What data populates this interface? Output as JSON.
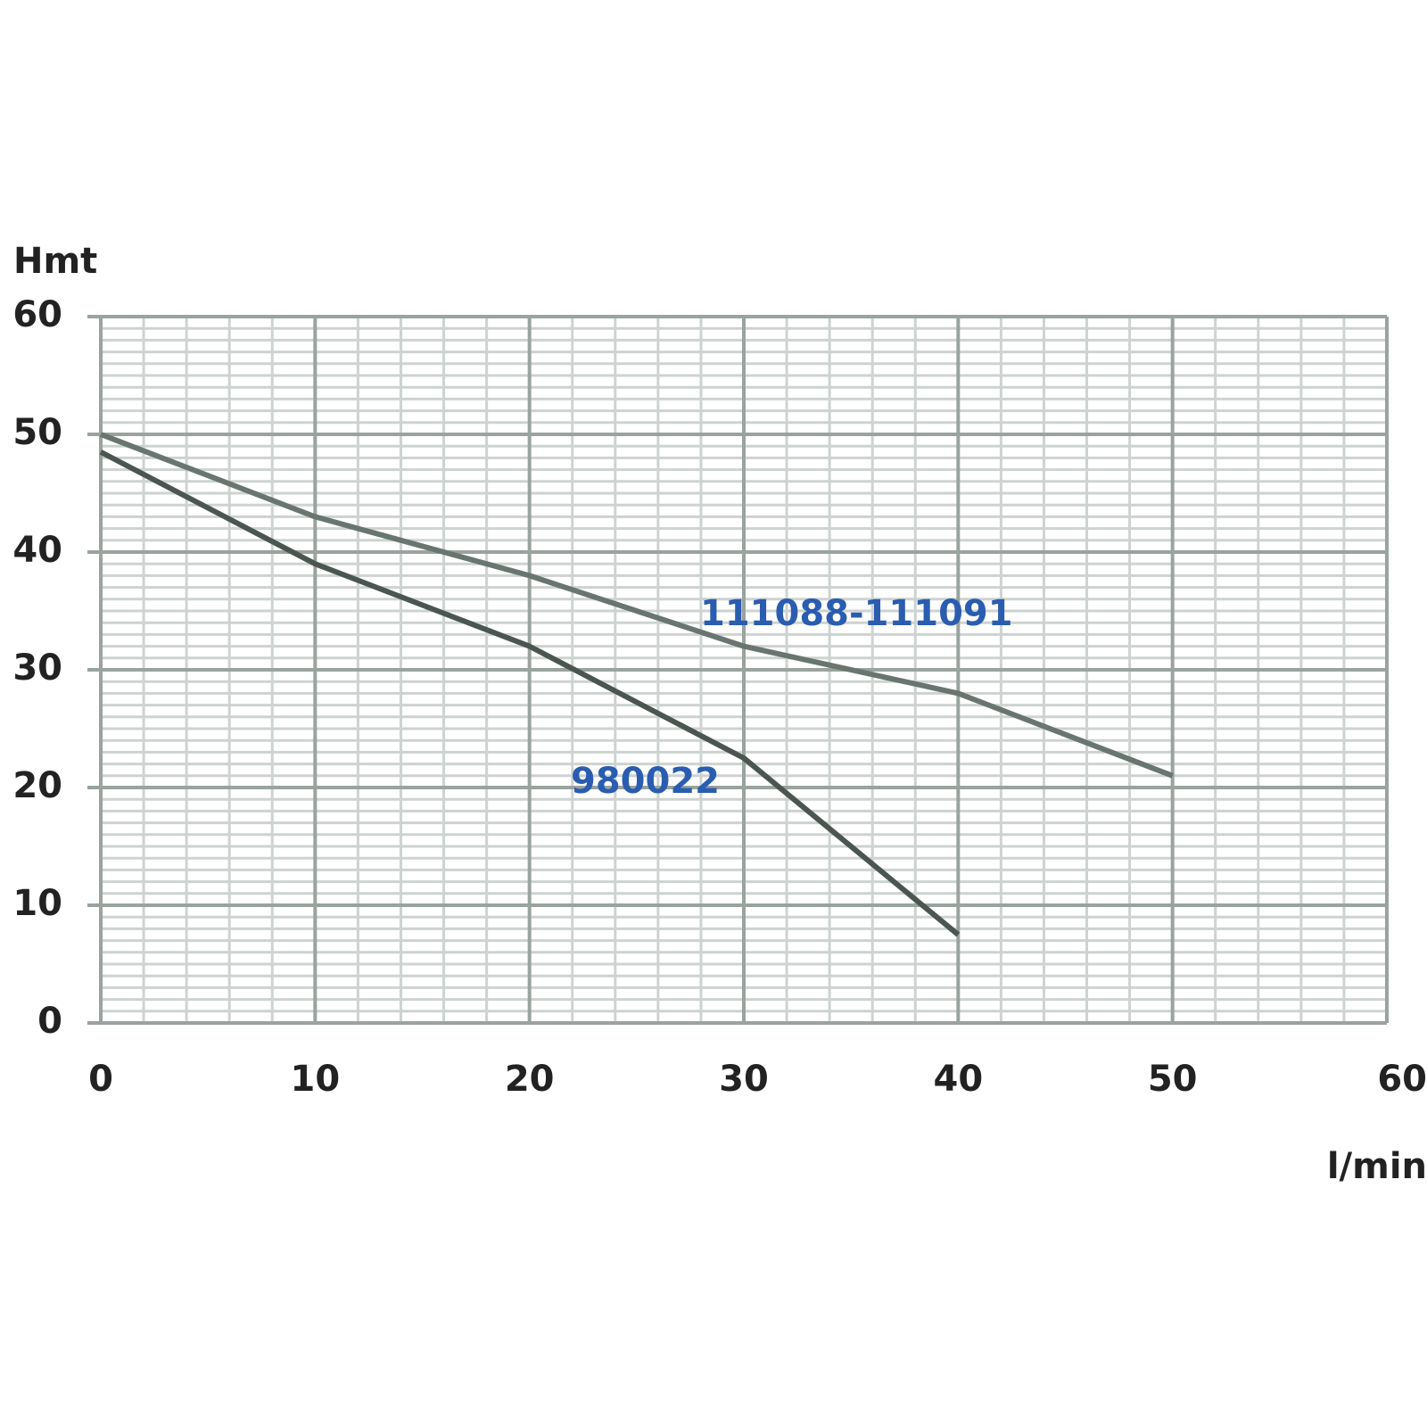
{
  "chart_data": {
    "type": "line",
    "x_label": "l/min",
    "y_label": "Hmt",
    "x": [
      0,
      10,
      20,
      30,
      40,
      50
    ],
    "series": [
      {
        "name": "111088-111091",
        "color": "#69766f",
        "values": [
          50,
          43,
          38,
          32,
          28,
          21
        ]
      },
      {
        "name": "980022",
        "color": "#4b5650",
        "values": [
          48.5,
          39,
          32,
          22.5,
          7.5,
          null
        ]
      }
    ],
    "label_color": "#2a5db0",
    "xlim": [
      0,
      60
    ],
    "ylim": [
      0,
      60
    ],
    "xticks": [
      0,
      10,
      20,
      30,
      40,
      50,
      60
    ],
    "yticks": [
      0,
      10,
      20,
      30,
      40,
      50,
      60
    ],
    "grid": true
  }
}
